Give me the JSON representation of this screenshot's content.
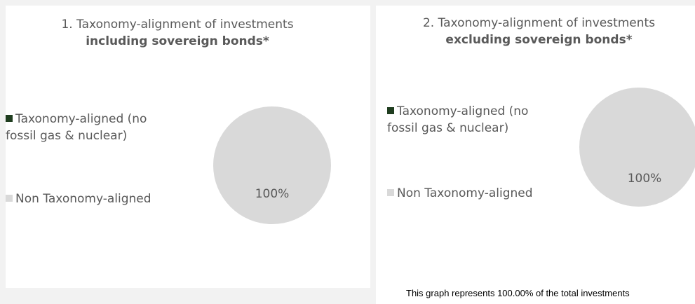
{
  "chart_data": [
    {
      "type": "pie",
      "title": "1. Taxonomy-alignment of investments",
      "subtitle": "including sovereign bonds*",
      "legend_placement": "left",
      "series": [
        {
          "categories": [
            "Taxonomy-aligned (no fossil gas & nuclear)",
            "Non Taxonomy-aligned"
          ],
          "values": [
            0,
            100
          ],
          "colors": [
            "#1f3d1f",
            "#d9d9d9"
          ]
        }
      ],
      "legend": [
        {
          "line1": "Taxonomy-aligned (no",
          "line2": "fossil gas & nuclear)",
          "color": "#1f3d1f"
        },
        {
          "line1": "Non Taxonomy-aligned",
          "color": "#d9d9d9"
        }
      ],
      "data_labels": [
        "100%"
      ]
    },
    {
      "type": "pie",
      "title": "2. Taxonomy-alignment of investments",
      "subtitle": "excluding sovereign bonds*",
      "legend_placement": "left",
      "series": [
        {
          "categories": [
            "Taxonomy-aligned (no fossil gas & nuclear)",
            "Non Taxonomy-aligned"
          ],
          "values": [
            0,
            100
          ],
          "colors": [
            "#1f3d1f",
            "#d9d9d9"
          ]
        }
      ],
      "legend": [
        {
          "line1": "Taxonomy-aligned (no",
          "line2": "fossil gas & nuclear)",
          "color": "#1f3d1f"
        },
        {
          "line1": "Non Taxonomy-aligned",
          "color": "#d9d9d9"
        }
      ],
      "data_labels": [
        "100%"
      ]
    }
  ],
  "footnote": "This graph represents 100.00% of the total investments"
}
